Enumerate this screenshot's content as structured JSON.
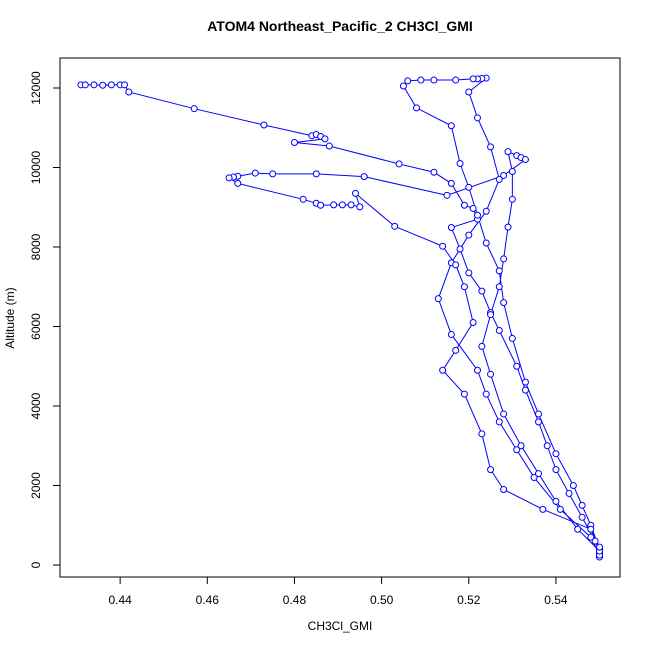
{
  "chart_data": {
    "type": "line",
    "title": "ATOM4 Northeast_Pacific_2 CH3Cl_GMI",
    "x_label": "CH3Cl_GMI",
    "y_label": "Altitude (m)",
    "x": [
      0.431,
      0.432,
      0.434,
      0.436,
      0.438,
      0.44,
      0.441,
      0.442,
      0.457,
      0.473,
      0.484,
      0.485,
      0.486,
      0.487,
      0.48,
      0.488,
      0.504,
      0.512,
      0.516,
      0.519,
      0.521,
      0.522,
      0.516,
      0.518,
      0.52,
      0.523,
      0.525,
      0.527,
      0.531,
      0.533,
      0.536,
      0.538,
      0.54,
      0.543,
      0.546,
      0.549,
      0.55,
      0.55,
      0.55,
      0.548,
      0.541,
      0.535,
      0.531,
      0.527,
      0.524,
      0.522,
      0.516,
      0.513,
      0.516,
      0.52,
      0.524,
      0.527,
      0.525,
      0.522,
      0.52,
      0.524,
      0.523,
      0.522,
      0.521,
      0.517,
      0.512,
      0.509,
      0.506,
      0.505,
      0.508,
      0.516,
      0.518,
      0.52,
      0.522,
      0.524,
      0.527,
      0.528,
      0.53,
      0.533,
      0.536,
      0.54,
      0.544,
      0.546,
      0.548,
      0.55,
      0.55,
      0.545,
      0.54,
      0.536,
      0.532,
      0.528,
      0.525,
      0.523,
      0.525,
      0.527,
      0.528,
      0.529,
      0.53,
      0.53,
      0.529,
      0.531,
      0.532,
      0.533,
      0.528,
      0.515,
      0.496,
      0.485,
      0.475,
      0.471,
      0.467,
      0.466,
      0.465,
      0.467,
      0.482,
      0.485,
      0.486,
      0.489,
      0.491,
      0.493,
      0.495,
      0.494,
      0.503,
      0.514,
      0.517,
      0.519,
      0.521,
      0.517,
      0.514,
      0.519,
      0.523,
      0.525,
      0.528,
      0.537,
      0.548,
      0.55
    ],
    "series": [
      {
        "name": "CH3Cl_GMI",
        "color": "#0000ff",
        "values": [
          12080,
          12080,
          12080,
          12070,
          12080,
          12080,
          12080,
          11900,
          11480,
          11070,
          10800,
          10830,
          10780,
          10720,
          10630,
          10540,
          10090,
          9880,
          9600,
          9050,
          8970,
          8700,
          8490,
          7950,
          7350,
          6890,
          6350,
          5900,
          5000,
          4400,
          3600,
          3000,
          2400,
          1800,
          1200,
          600,
          300,
          200,
          250,
          700,
          1400,
          2200,
          2900,
          3600,
          4300,
          4900,
          5800,
          6700,
          7600,
          8300,
          8900,
          9700,
          10520,
          11250,
          11900,
          12250,
          12240,
          12230,
          12230,
          12200,
          12200,
          12200,
          12180,
          12050,
          11500,
          11050,
          10100,
          9500,
          8800,
          8100,
          7400,
          6600,
          5700,
          4600,
          3800,
          2800,
          2000,
          1500,
          1000,
          400,
          350,
          900,
          1600,
          2300,
          3000,
          3800,
          4800,
          5500,
          6300,
          7000,
          7700,
          8500,
          9200,
          9900,
          10400,
          10300,
          10250,
          10200,
          9800,
          9300,
          9770,
          9840,
          9840,
          9860,
          9780,
          9760,
          9740,
          9600,
          9200,
          9100,
          9050,
          9060,
          9060,
          9060,
          9010,
          9350,
          8520,
          8020,
          7550,
          7000,
          6100,
          5400,
          4900,
          4300,
          3300,
          2400,
          1900,
          1400,
          900,
          450
        ]
      }
    ],
    "xlim": [
      0.4262,
      0.5547
    ],
    "ylim": [
      -302,
      12755
    ],
    "xticks": [
      0.44,
      0.46,
      0.48,
      {
        "value": 0.5,
        "label": "0.50"
      },
      0.52,
      0.54
    ],
    "yticks": [
      0,
      2000,
      4000,
      6000,
      8000,
      10000,
      12000
    ]
  }
}
